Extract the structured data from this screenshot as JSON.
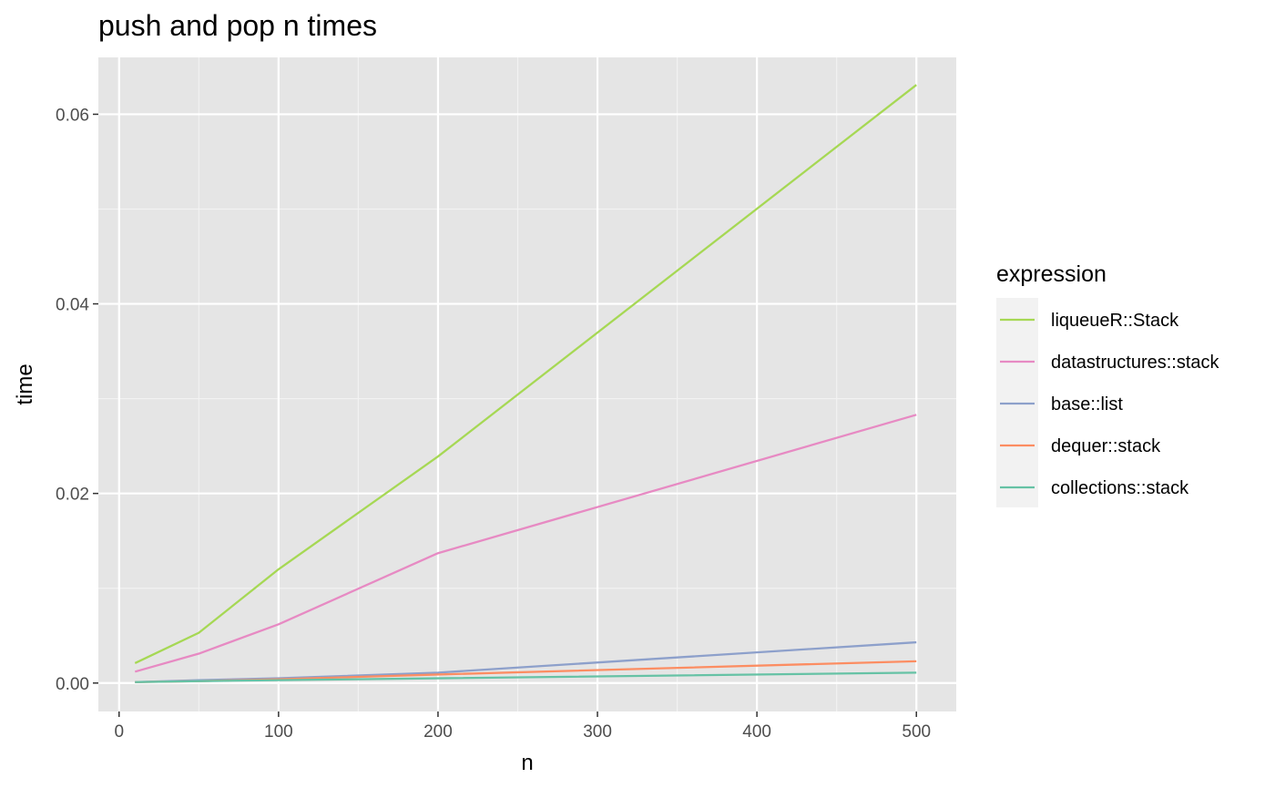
{
  "chart_data": {
    "type": "line",
    "title": "push and pop n times",
    "xlabel": "n",
    "ylabel": "time",
    "xlim": [
      -13,
      525
    ],
    "ylim": [
      -0.003,
      0.066
    ],
    "x_ticks": [
      0,
      100,
      200,
      300,
      400,
      500
    ],
    "x_tick_labels": [
      "0",
      "100",
      "200",
      "300",
      "400",
      "500"
    ],
    "y_ticks": [
      0.0,
      0.02,
      0.04,
      0.06
    ],
    "y_tick_labels": [
      "0.00",
      "0.02",
      "0.04",
      "0.06"
    ],
    "grid": true,
    "legend": {
      "title": "expression",
      "position": "right"
    },
    "x": [
      10,
      50,
      100,
      200,
      500
    ],
    "series": [
      {
        "name": "liqueueR::Stack",
        "color": "#a6d854",
        "values": [
          0.0021,
          0.0053,
          0.012,
          0.0239,
          0.0631
        ]
      },
      {
        "name": "datastructures::stack",
        "color": "#e78ac3",
        "values": [
          0.0012,
          0.0031,
          0.0062,
          0.0137,
          0.0283
        ]
      },
      {
        "name": "base::list",
        "color": "#8da0cb",
        "values": [
          0.0001,
          0.0003,
          0.0005,
          0.0011,
          0.0043
        ]
      },
      {
        "name": "dequer::stack",
        "color": "#fc8d62",
        "values": [
          0.0001,
          0.0002,
          0.0004,
          0.0009,
          0.0023
        ]
      },
      {
        "name": "collections::stack",
        "color": "#66c2a5",
        "values": [
          0.0001,
          0.0002,
          0.0003,
          0.0005,
          0.0011
        ]
      }
    ]
  }
}
